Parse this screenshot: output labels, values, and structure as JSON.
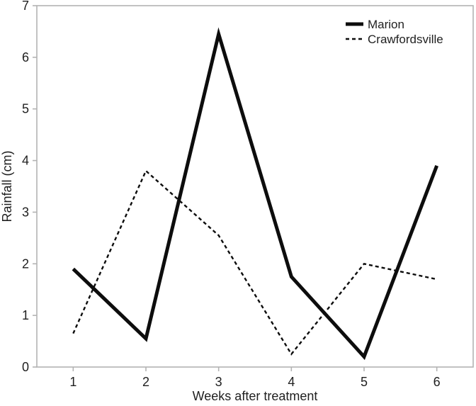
{
  "figure": {
    "background_color": "#ffffff",
    "frame_color": "#b3b3b3",
    "text_color": "#1f1f1f",
    "line_color": "#0d0d0d"
  },
  "chart_data": {
    "type": "line",
    "title": "",
    "xlabel": "Weeks after treatment",
    "ylabel": "Rainfall (cm)",
    "x": [
      1,
      2,
      3,
      4,
      5,
      6
    ],
    "x_tick_labels": [
      "1",
      "2",
      "3",
      "4",
      "5",
      "6"
    ],
    "y_ticks": [
      0,
      1,
      2,
      3,
      4,
      5,
      6,
      7
    ],
    "y_tick_labels": [
      "0",
      "1",
      "2",
      "3",
      "4",
      "5",
      "6",
      "7"
    ],
    "xlim": [
      0.5,
      6.5
    ],
    "ylim": [
      0,
      7
    ],
    "grid": false,
    "legend_position": "top-right",
    "series": [
      {
        "name": "Marion",
        "style": "solid",
        "color": "#0d0d0d",
        "stroke_width": 5,
        "values": [
          1.9,
          0.55,
          6.45,
          1.75,
          0.2,
          3.9
        ]
      },
      {
        "name": "Crawfordsville",
        "style": "dashed",
        "color": "#0d0d0d",
        "stroke_width": 2.4,
        "values": [
          0.65,
          3.8,
          2.55,
          0.25,
          2.0,
          1.7
        ]
      }
    ]
  }
}
